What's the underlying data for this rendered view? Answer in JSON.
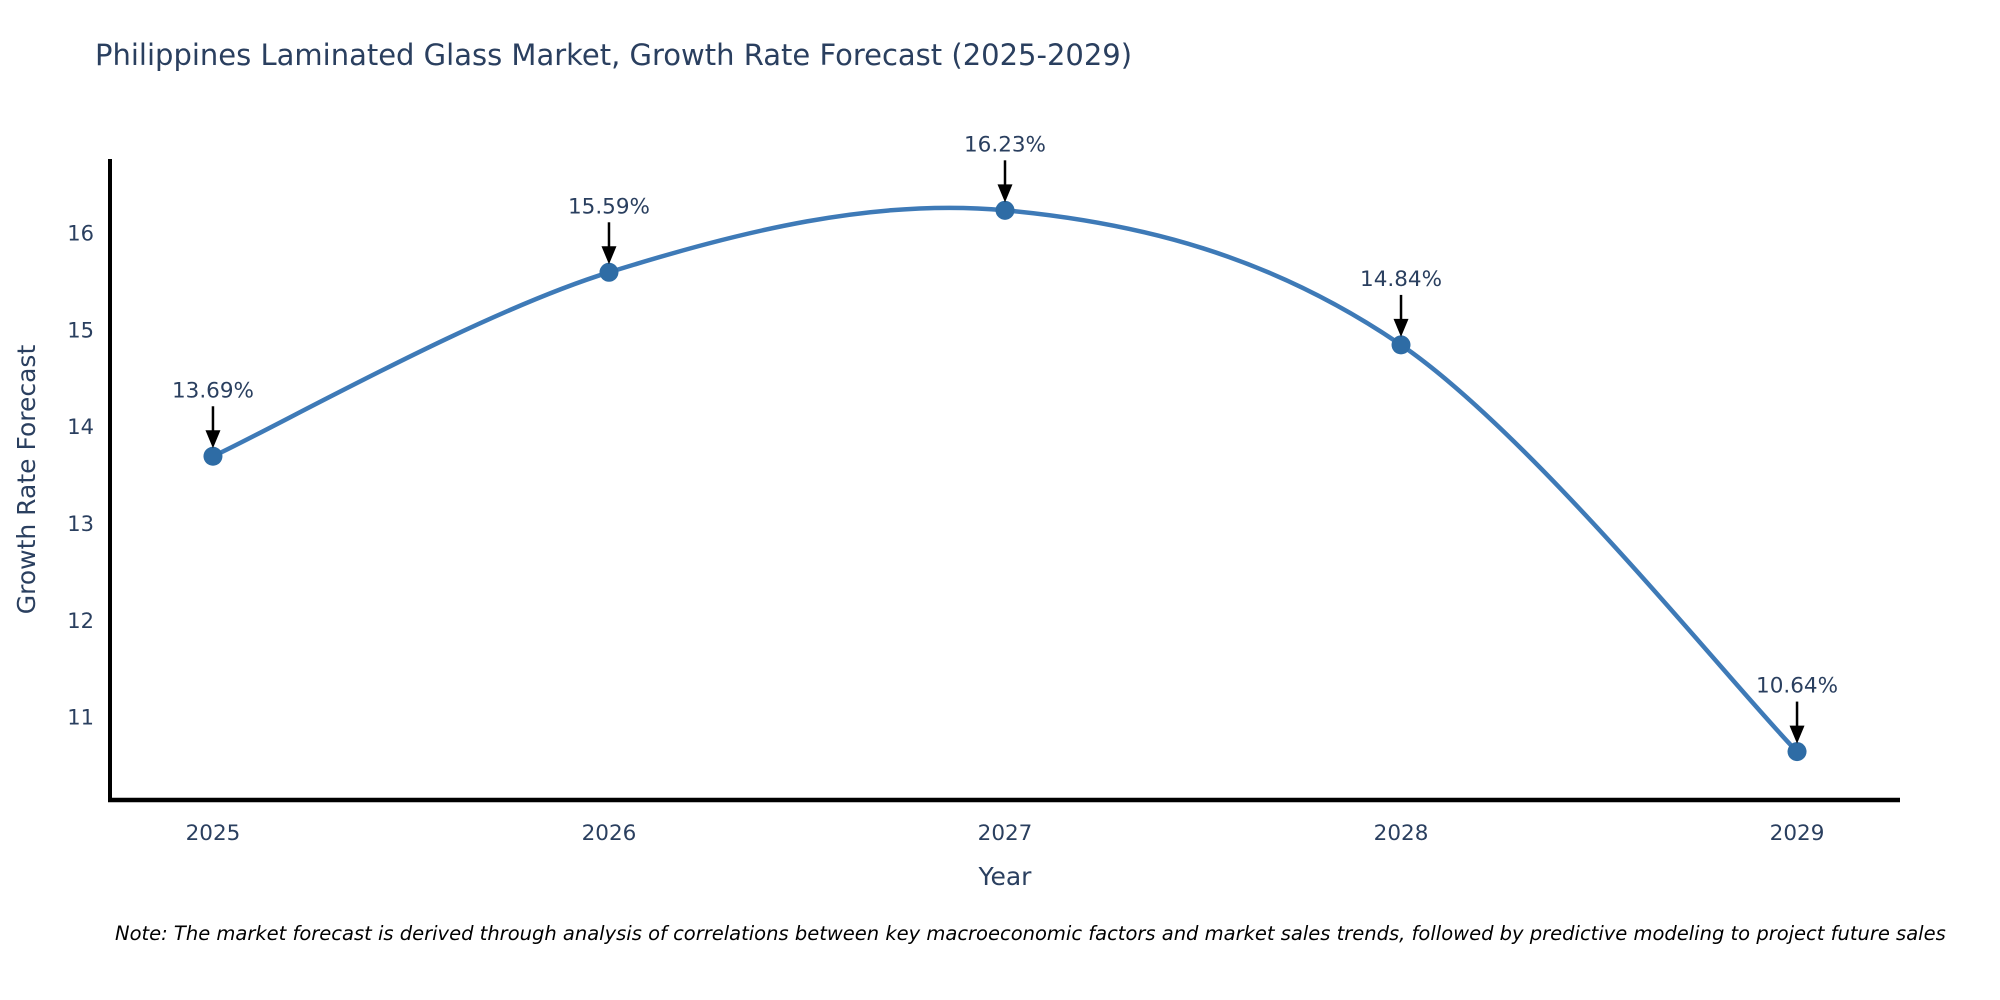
{
  "title": "Philippines Laminated Glass Market, Growth Rate Forecast (2025-2029)",
  "note": "Note: The market forecast is derived through analysis of correlations between key macroeconomic factors and market sales trends, followed by predictive modeling to project future sales",
  "chart_data": {
    "type": "line",
    "title": "Philippines Laminated Glass Market, Growth Rate Forecast (2025-2029)",
    "xlabel": "Year",
    "ylabel": "Growth Rate Forecast",
    "x": [
      2025,
      2026,
      2027,
      2028,
      2029
    ],
    "series": [
      {
        "name": "Growth Rate Forecast",
        "values": [
          13.69,
          15.59,
          16.23,
          14.84,
          10.64
        ]
      }
    ],
    "point_labels": [
      "13.69%",
      "15.59%",
      "16.23%",
      "14.84%",
      "10.64%"
    ],
    "xticks": [
      "2025",
      "2026",
      "2027",
      "2028",
      "2029"
    ],
    "xtick_values": [
      2025,
      2026,
      2027,
      2028,
      2029
    ],
    "yticks": [
      "11",
      "12",
      "13",
      "14",
      "15",
      "16"
    ],
    "ytick_values": [
      11,
      12,
      13,
      14,
      15,
      16
    ],
    "xlim": [
      2024.74,
      2029.26
    ],
    "ylim": [
      10.14,
      16.76
    ],
    "line_shape": "spline",
    "grid": false,
    "legend_position": "none",
    "colors": {
      "line": "#3e7ab7",
      "marker": "#2e6ca5",
      "axis_line": "#000000",
      "text": "#2a3f5f",
      "annotation_text": "#2a3f5f",
      "annotation_arrow": "#000000",
      "background": "#ffffff"
    }
  }
}
